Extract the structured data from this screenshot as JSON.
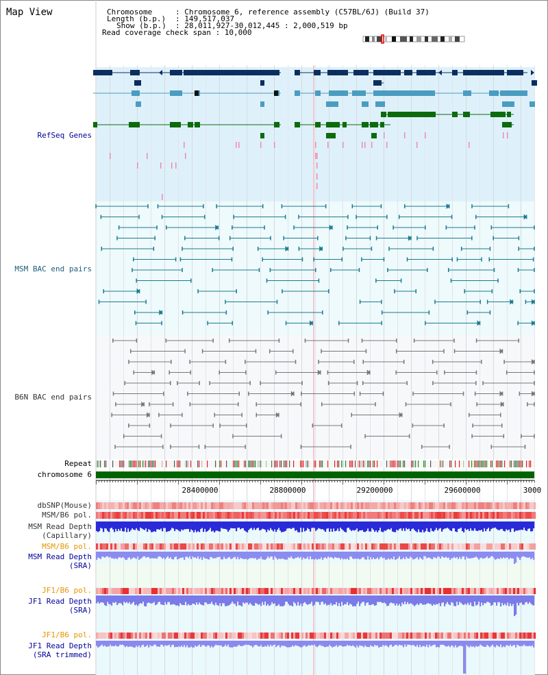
{
  "title": "Map View",
  "header": {
    "line1_key": "Chromosome",
    "line1_val": ": Chromosome 6, reference assembly (C57BL/6J) (Build 37)",
    "line2_key": "Length (b.p.)",
    "line2_val": ": 149,517,037",
    "line3_key": "Show (b.p.)",
    "line3_val": ": 28,011,927-30,012,445 : 2,000,519 bp",
    "line4": "Read coverage check span : 10,000"
  },
  "tracks": {
    "refseq": "RefSeq Genes",
    "msm_bac": "MSM BAC end pairs",
    "b6n_bac": "B6N BAC end pairs",
    "repeat": "Repeat",
    "chromosome": "chromosome 6",
    "dbsnp": "dbSNP(Mouse)",
    "msm_b6_pol": "MSM/B6 pol.",
    "msm_depth_cap_1": "MSM Read Depth",
    "msm_depth_cap_2": "(Capillary)",
    "msm_b6_pol_sra": "MSM/B6 pol.",
    "msm_depth_sra_1": "MSM Read Depth",
    "msm_depth_sra_2": "(SRA)",
    "jf1_pol": "JF1/B6 pol.",
    "jf1_depth_1": "JF1 Read Depth",
    "jf1_depth_2": "(SRA)",
    "jf1_pol_trim": "JF1/B6 pol.",
    "jf1_trim_1": "JF1 Read Depth",
    "jf1_trim_2": "(SRA trimmed)"
  },
  "axis": {
    "ticks": [
      "28400000",
      "28800000",
      "29200000",
      "29600000",
      "3000"
    ]
  },
  "colors": {
    "refseq_bg": "#dff1fa",
    "gene_dark": "#0b2e5e",
    "gene_mid": "#4a9cc0",
    "gene_green": "#0c6b0c",
    "msm_line": "#1a7a93",
    "b6n_line": "#777777",
    "chrom_bar": "#006400",
    "label_blue": "#000099",
    "label_orange": "#e69500"
  }
}
